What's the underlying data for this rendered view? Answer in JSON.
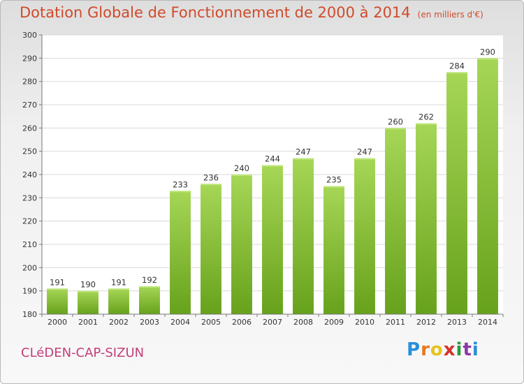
{
  "header": {
    "title": "Dotation Globale de Fonctionnement de 2000 à 2014",
    "unit": "(en milliers d'€)"
  },
  "footer": {
    "commune": "CLéDEN-CAP-SIZUN",
    "brand_letters": [
      "P",
      "r",
      "o",
      "x",
      "i",
      "t",
      "i"
    ],
    "brand_colors": [
      "#2a8fd6",
      "#e8781e",
      "#e8c21e",
      "#d6322a",
      "#2a9a3c",
      "#8a3aa8",
      "#2a8fd6"
    ]
  },
  "colors": {
    "bar_light": "#a6d656",
    "bar_dark": "#67a21c",
    "title": "#d04a2a",
    "commune": "#c2407a"
  },
  "chart_data": {
    "type": "bar",
    "title": "Dotation Globale de Fonctionnement de 2000 à 2014",
    "subtitle": "(en milliers d'€)",
    "xlabel": "",
    "ylabel": "",
    "categories": [
      "2000",
      "2001",
      "2002",
      "2003",
      "2004",
      "2005",
      "2006",
      "2007",
      "2008",
      "2009",
      "2010",
      "2011",
      "2012",
      "2013",
      "2014"
    ],
    "values": [
      191,
      190,
      191,
      192,
      233,
      236,
      240,
      244,
      247,
      235,
      247,
      260,
      262,
      284,
      290
    ],
    "ylim": [
      180,
      300
    ],
    "yticks": [
      180,
      190,
      200,
      210,
      220,
      230,
      240,
      250,
      260,
      270,
      280,
      290,
      300
    ],
    "grid": true,
    "legend": "none"
  }
}
